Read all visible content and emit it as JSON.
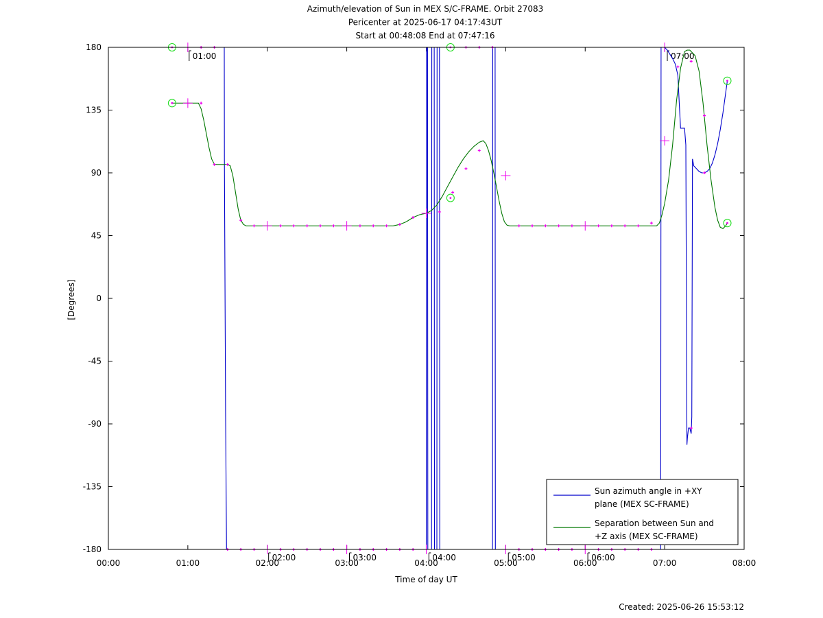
{
  "chart_data": {
    "type": "line",
    "title_lines": [
      "Azimuth/elevation of Sun in MEX S/C-FRAME.  Orbit 27083",
      "Pericenter at 2025-06-17 04:17:43UT",
      "Start at 00:48:08 End at 07:47:16"
    ],
    "xlabel": "Time of day UT",
    "ylabel": "[Degrees]",
    "footer": "Created: 2025-06-26 15:53:12",
    "xlim": [
      0,
      480
    ],
    "ylim": [
      -180,
      180
    ],
    "x_ticks": [
      {
        "v": 0,
        "label": "00:00"
      },
      {
        "v": 60,
        "label": "01:00"
      },
      {
        "v": 120,
        "label": "02:00"
      },
      {
        "v": 180,
        "label": "03:00"
      },
      {
        "v": 240,
        "label": "04:00"
      },
      {
        "v": 300,
        "label": "05:00"
      },
      {
        "v": 360,
        "label": "06:00"
      },
      {
        "v": 420,
        "label": "07:00"
      },
      {
        "v": 480,
        "label": "08:00"
      }
    ],
    "y_ticks": [
      {
        "v": 180,
        "label": "180"
      },
      {
        "v": 135,
        "label": "135"
      },
      {
        "v": 90,
        "label": "90"
      },
      {
        "v": 45,
        "label": "45"
      },
      {
        "v": 0,
        "label": "0"
      },
      {
        "v": -45,
        "label": "-45"
      },
      {
        "v": -90,
        "label": "-90"
      },
      {
        "v": -135,
        "label": "-135"
      },
      {
        "v": -180,
        "label": "-180"
      }
    ],
    "hour_markers": [
      {
        "v": 61,
        "y": 180,
        "label": "01:00"
      },
      {
        "v": 121,
        "y": -180,
        "label": "02:00"
      },
      {
        "v": 182,
        "y": -180,
        "label": "03:00"
      },
      {
        "v": 242,
        "y": -180,
        "label": "04:00"
      },
      {
        "v": 302,
        "y": -180,
        "label": "05:00"
      },
      {
        "v": 362,
        "y": -180,
        "label": "06:00"
      },
      {
        "v": 422,
        "y": 180,
        "label": "07:00"
      }
    ],
    "legend": {
      "placement": "bottom-right",
      "entries": [
        {
          "lines": [
            "Sun azimuth angle in +XY",
            "plane (MEX SC-FRAME)"
          ],
          "color": "#0000cc"
        },
        {
          "lines": [
            "Separation between Sun and",
            "+Z axis (MEX SC-FRAME)"
          ],
          "color": "#007700"
        }
      ]
    },
    "series": [
      {
        "id": "azimuth",
        "color": "#0000cc",
        "x": [
          48.1,
          87.5,
          87.6,
          88.5,
          89.2,
          240.0,
          240.2,
          241.0,
          241.2,
          244.0,
          244.2,
          246.0,
          246.2,
          248.0,
          248.2,
          250.0,
          250.2,
          290.0,
          290.2,
          292.0,
          292.2,
          417.0,
          417.3,
          420.0,
          422.0,
          426.0,
          428.0,
          430.0,
          431.0,
          432.0,
          435.0,
          436.0,
          436.8,
          437.2,
          438.0,
          439.0,
          440.0,
          440.5,
          441.0,
          442.0,
          444.0,
          446.0,
          448.0,
          450.0,
          452.0,
          454.0,
          456.0,
          458.0,
          460.0,
          462.0,
          464.0,
          466.0,
          467.3
        ],
        "y": [
          180,
          180,
          100,
          -80,
          -180,
          -180,
          180,
          180,
          -180,
          -180,
          180,
          180,
          -180,
          -180,
          180,
          180,
          -180,
          -180,
          180,
          180,
          -180,
          -180,
          180,
          180,
          178,
          172,
          168,
          160,
          140,
          122,
          122,
          110,
          -105,
          -100,
          -93,
          -93,
          -97,
          -85,
          100,
          95,
          93,
          91,
          90,
          90,
          91,
          93,
          97,
          103,
          111,
          121,
          133,
          147,
          156
        ]
      },
      {
        "id": "separation",
        "color": "#007700",
        "x": [
          48.1,
          68,
          70,
          72,
          74,
          76,
          78,
          80,
          82,
          84,
          86,
          88,
          90,
          92,
          94,
          96,
          98,
          100,
          102,
          104,
          106,
          110,
          130,
          160,
          180,
          200,
          215,
          220,
          225,
          230,
          235,
          240,
          244,
          248,
          252,
          256,
          260,
          264,
          268,
          272,
          276,
          280,
          283,
          285,
          287,
          289,
          291,
          293,
          295,
          297,
          299,
          301,
          303,
          305,
          307,
          309,
          311,
          315,
          330,
          360,
          390,
          410,
          414,
          416,
          418,
          420,
          423,
          426,
          429,
          432,
          435,
          437,
          439,
          441,
          443,
          446,
          449,
          452,
          455,
          458,
          460,
          462,
          464,
          466,
          467.3
        ],
        "y": [
          140,
          140,
          136,
          128,
          118,
          108,
          100,
          96.2,
          96,
          96,
          96,
          96,
          96,
          95,
          88,
          76,
          64,
          56,
          53,
          52,
          52,
          52,
          52,
          52,
          52,
          52,
          52,
          53,
          55,
          58,
          60,
          61,
          63,
          67,
          73,
          80,
          87,
          94,
          100,
          105,
          109,
          112,
          113,
          111,
          106,
          99,
          90,
          80,
          70,
          61,
          55,
          52.5,
          52,
          52,
          52,
          52,
          52,
          52,
          52,
          52,
          52,
          52,
          52,
          54,
          60,
          68,
          85,
          110,
          142,
          165,
          177,
          178,
          178,
          176,
          174,
          163,
          140,
          110,
          85,
          65,
          56,
          51,
          50,
          52,
          54
        ]
      }
    ],
    "markers": {
      "color": "#ee00ee",
      "circle_color": "#22dd22",
      "circles": [
        {
          "x": 48.1,
          "y": 180
        },
        {
          "x": 48.1,
          "y": 140
        },
        {
          "x": 258.3,
          "y": 180
        },
        {
          "x": 258.3,
          "y": 72
        },
        {
          "x": 467.3,
          "y": 156
        },
        {
          "x": 467.3,
          "y": 54
        }
      ],
      "crosses": [
        {
          "x": 60,
          "y": 180
        },
        {
          "x": 60,
          "y": 140
        },
        {
          "x": 120,
          "y": -180
        },
        {
          "x": 120,
          "y": 52
        },
        {
          "x": 180,
          "y": -180
        },
        {
          "x": 180,
          "y": 52
        },
        {
          "x": 240,
          "y": -180
        },
        {
          "x": 240,
          "y": 61
        },
        {
          "x": 300,
          "y": -180
        },
        {
          "x": 300,
          "y": 88
        },
        {
          "x": 360,
          "y": -180
        },
        {
          "x": 360,
          "y": 52
        },
        {
          "x": 420,
          "y": 180
        },
        {
          "x": 420,
          "y": 113
        }
      ],
      "dots": [
        {
          "x": 70,
          "y": 180
        },
        {
          "x": 80,
          "y": 180
        },
        {
          "x": 70,
          "y": 140
        },
        {
          "x": 80,
          "y": 96
        },
        {
          "x": 90,
          "y": 96
        },
        {
          "x": 90,
          "y": -180
        },
        {
          "x": 100,
          "y": -180
        },
        {
          "x": 110,
          "y": -180
        },
        {
          "x": 130,
          "y": -180
        },
        {
          "x": 140,
          "y": -180
        },
        {
          "x": 150,
          "y": -180
        },
        {
          "x": 160,
          "y": -180
        },
        {
          "x": 170,
          "y": -180
        },
        {
          "x": 190,
          "y": -180
        },
        {
          "x": 200,
          "y": -180
        },
        {
          "x": 210,
          "y": -180
        },
        {
          "x": 220,
          "y": -180
        },
        {
          "x": 230,
          "y": -180
        },
        {
          "x": 100,
          "y": 56
        },
        {
          "x": 110,
          "y": 52
        },
        {
          "x": 130,
          "y": 52
        },
        {
          "x": 140,
          "y": 52
        },
        {
          "x": 150,
          "y": 52
        },
        {
          "x": 160,
          "y": 52
        },
        {
          "x": 170,
          "y": 52
        },
        {
          "x": 190,
          "y": 52
        },
        {
          "x": 200,
          "y": 52
        },
        {
          "x": 210,
          "y": 52
        },
        {
          "x": 220,
          "y": 53
        },
        {
          "x": 230,
          "y": 58
        },
        {
          "x": 250,
          "y": 62
        },
        {
          "x": 260,
          "y": 76
        },
        {
          "x": 270,
          "y": 93
        },
        {
          "x": 280,
          "y": 106
        },
        {
          "x": 270,
          "y": 180
        },
        {
          "x": 280,
          "y": 180
        },
        {
          "x": 290,
          "y": 180
        },
        {
          "x": 310,
          "y": -180
        },
        {
          "x": 320,
          "y": -180
        },
        {
          "x": 330,
          "y": -180
        },
        {
          "x": 340,
          "y": -180
        },
        {
          "x": 350,
          "y": -180
        },
        {
          "x": 370,
          "y": -180
        },
        {
          "x": 380,
          "y": -180
        },
        {
          "x": 390,
          "y": -180
        },
        {
          "x": 400,
          "y": -180
        },
        {
          "x": 410,
          "y": -180
        },
        {
          "x": 310,
          "y": 52
        },
        {
          "x": 320,
          "y": 52
        },
        {
          "x": 330,
          "y": 52
        },
        {
          "x": 340,
          "y": 52
        },
        {
          "x": 350,
          "y": 52
        },
        {
          "x": 370,
          "y": 52
        },
        {
          "x": 380,
          "y": 52
        },
        {
          "x": 390,
          "y": 52
        },
        {
          "x": 400,
          "y": 52
        },
        {
          "x": 410,
          "y": 54
        },
        {
          "x": 430,
          "y": 166
        },
        {
          "x": 440,
          "y": 170
        },
        {
          "x": 440,
          "y": -93
        },
        {
          "x": 450,
          "y": 131
        },
        {
          "x": 450,
          "y": 90
        }
      ]
    }
  }
}
